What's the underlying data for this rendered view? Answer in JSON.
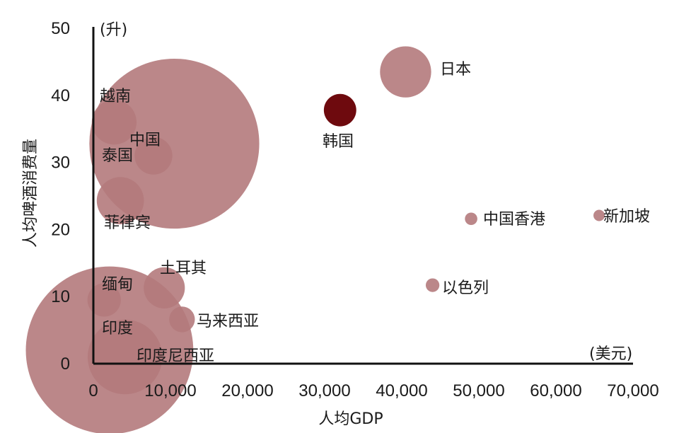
{
  "chart_data": {
    "type": "scatter",
    "xlabel": "人均GDP",
    "ylabel": "人均啤酒消费量",
    "x_unit": "(美元)",
    "y_unit": "(升)",
    "xlim": [
      0,
      70000
    ],
    "ylim": [
      0,
      50
    ],
    "x_ticks": [
      "0",
      "10,000",
      "20,000",
      "30,000",
      "40,000",
      "50,000",
      "60,000",
      "70,000"
    ],
    "y_ticks": [
      "0",
      "10",
      "20",
      "30",
      "40",
      "50"
    ],
    "grid": false,
    "colors": {
      "bubble": "#b47a7c",
      "highlight": "#6e0a0e",
      "axis": "#111111"
    },
    "points": [
      {
        "name": "中国",
        "x": 10500,
        "y": 32.8,
        "size": 1400,
        "highlight": false
      },
      {
        "name": "日本",
        "x": 40500,
        "y": 43.5,
        "size": 127,
        "highlight": false
      },
      {
        "name": "韩国",
        "x": 32000,
        "y": 37.8,
        "size": 51,
        "highlight": true
      },
      {
        "name": "越南",
        "x": 2700,
        "y": 36.0,
        "size": 97,
        "highlight": false
      },
      {
        "name": "泰国",
        "x": 7800,
        "y": 31.0,
        "size": 69,
        "highlight": false
      },
      {
        "name": "菲律宾",
        "x": 3500,
        "y": 24.3,
        "size": 108,
        "highlight": false
      },
      {
        "name": "中国香港",
        "x": 49000,
        "y": 21.6,
        "size": 7.5,
        "highlight": false
      },
      {
        "name": "新加坡",
        "x": 65600,
        "y": 22.1,
        "size": 5.7,
        "highlight": false
      },
      {
        "name": "土耳其",
        "x": 9200,
        "y": 11.3,
        "size": 82,
        "highlight": false
      },
      {
        "name": "缅甸",
        "x": 1400,
        "y": 9.5,
        "size": 54,
        "highlight": false
      },
      {
        "name": "以色列",
        "x": 44000,
        "y": 11.7,
        "size": 9,
        "highlight": false
      },
      {
        "name": "马来西亚",
        "x": 11500,
        "y": 6.6,
        "size": 32,
        "highlight": false
      },
      {
        "name": "印度",
        "x": 2100,
        "y": 2.0,
        "size": 1360,
        "highlight": false
      },
      {
        "name": "印度尼西亚",
        "x": 4100,
        "y": 1.0,
        "size": 270,
        "highlight": false
      }
    ]
  }
}
